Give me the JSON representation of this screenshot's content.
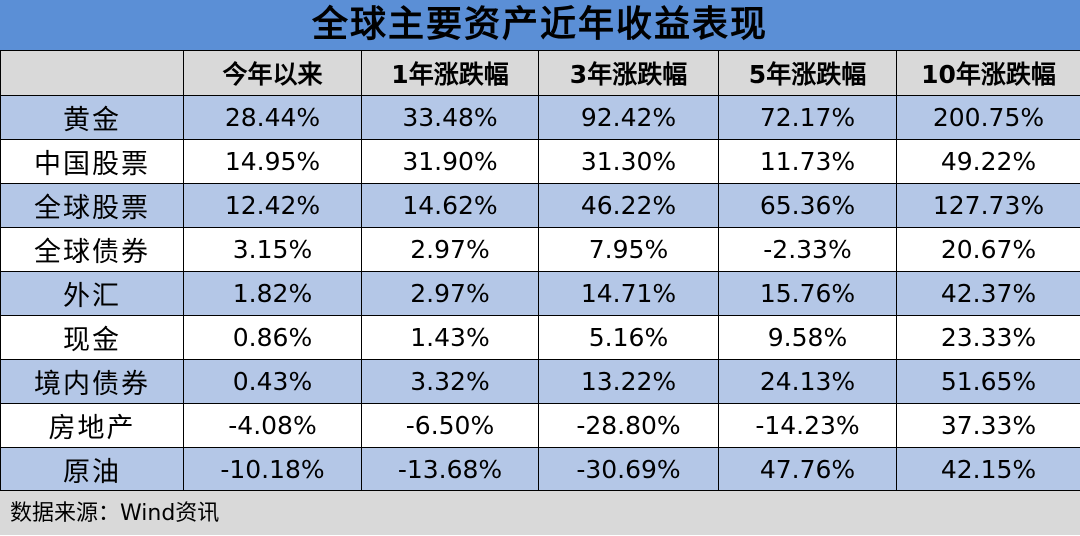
{
  "chart_data": {
    "type": "table",
    "title": "全球主要资产近年收益表现",
    "columns": [
      "",
      "今年以来",
      "1年涨跌幅",
      "3年涨跌幅",
      "5年涨跌幅",
      "10年涨跌幅"
    ],
    "rows": [
      {
        "label": "黄金",
        "values": [
          "28.44%",
          "33.48%",
          "92.42%",
          "72.17%",
          "200.75%"
        ]
      },
      {
        "label": "中国股票",
        "values": [
          "14.95%",
          "31.90%",
          "31.30%",
          "11.73%",
          "49.22%"
        ]
      },
      {
        "label": "全球股票",
        "values": [
          "12.42%",
          "14.62%",
          "46.22%",
          "65.36%",
          "127.73%"
        ]
      },
      {
        "label": "全球债券",
        "values": [
          "3.15%",
          "2.97%",
          "7.95%",
          "-2.33%",
          "20.67%"
        ]
      },
      {
        "label": "外汇",
        "values": [
          "1.82%",
          "2.97%",
          "14.71%",
          "15.76%",
          "42.37%"
        ]
      },
      {
        "label": "现金",
        "values": [
          "0.86%",
          "1.43%",
          "5.16%",
          "9.58%",
          "23.33%"
        ]
      },
      {
        "label": "境内债券",
        "values": [
          "0.43%",
          "3.32%",
          "13.22%",
          "24.13%",
          "51.65%"
        ]
      },
      {
        "label": "房地产",
        "values": [
          "-4.08%",
          "-6.50%",
          "-28.80%",
          "-14.23%",
          "37.33%"
        ]
      },
      {
        "label": "原油",
        "values": [
          "-10.18%",
          "-13.68%",
          "-30.69%",
          "47.76%",
          "42.15%"
        ]
      }
    ],
    "source": "数据来源：Wind资讯"
  },
  "colors": {
    "title_bg": "#5b8fd6",
    "header_bg": "#d9d9d9",
    "band_bg": "#b4c7e7",
    "plain_bg": "#ffffff",
    "source_bg": "#d9d9d9"
  }
}
